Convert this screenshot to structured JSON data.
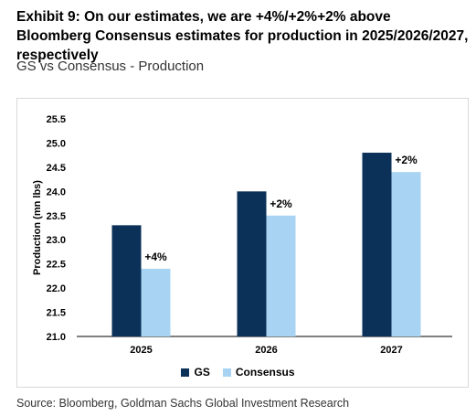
{
  "header": {
    "title": "Exhibit 9: On our estimates, we are +4%/+2%+2% above Bloomberg Consensus estimates for production in 2025/2026/2027, respectively",
    "subtitle": "GS vs Consensus - Production"
  },
  "footer": {
    "source": "Source: Bloomberg, Goldman Sachs Global Investment Research"
  },
  "chart_data": {
    "type": "bar",
    "categories": [
      "2025",
      "2026",
      "2027"
    ],
    "series": [
      {
        "name": "GS",
        "values": [
          23.3,
          24.0,
          24.8
        ],
        "color": "#0b3158"
      },
      {
        "name": "Consensus",
        "values": [
          22.4,
          23.5,
          24.4
        ],
        "color": "#a8d3f2"
      }
    ],
    "data_labels": [
      "+4%",
      "+2%",
      "+2%"
    ],
    "ylabel": "Production (mn lbs)",
    "ylim": [
      21.0,
      25.5
    ],
    "yticks": [
      "21.0",
      "21.5",
      "22.0",
      "22.5",
      "23.0",
      "23.5",
      "24.0",
      "24.5",
      "25.0",
      "25.5"
    ],
    "grid": false,
    "legend": "bottom-center"
  }
}
